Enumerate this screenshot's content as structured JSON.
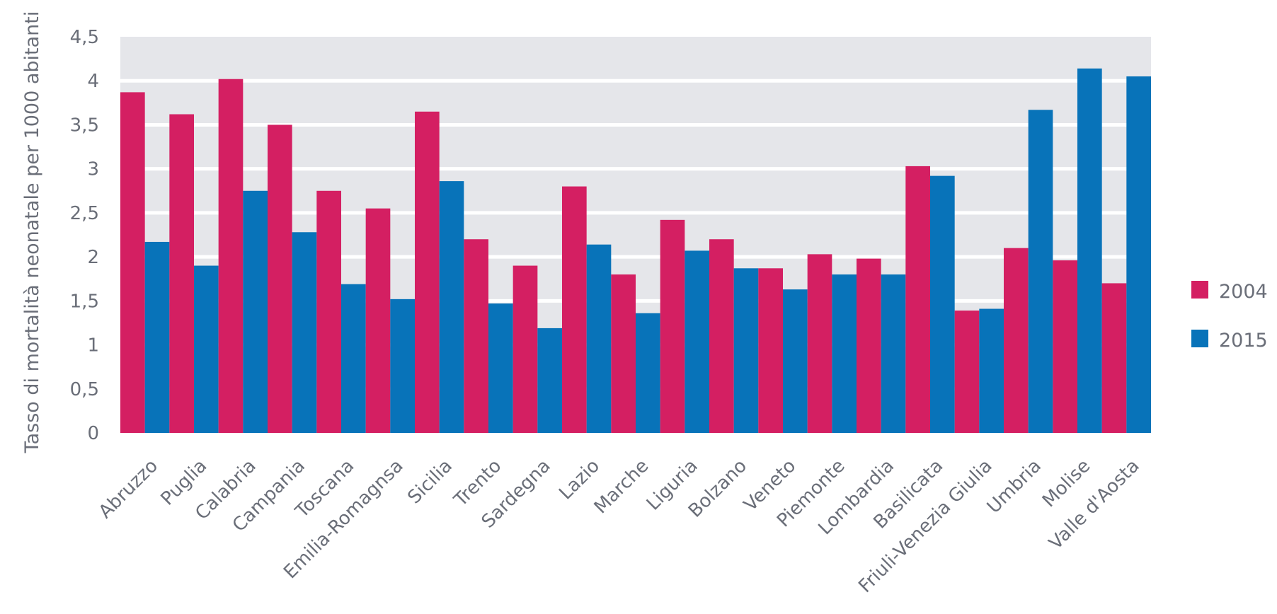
{
  "chart_data": {
    "type": "bar",
    "title": "",
    "xlabel": "",
    "ylabel": "Tasso di mortalità neonatale per 1000 abitanti",
    "ylim": [
      0,
      4.5
    ],
    "yticks": [
      "0",
      "0,5",
      "1",
      "1,5",
      "2",
      "2,5",
      "3",
      "3,5",
      "4",
      "4,5"
    ],
    "legend_position": "right",
    "categories": [
      "Abruzzo",
      "Puglia",
      "Calabria",
      "Campania",
      "Toscana",
      "Emilia-Romagnsa",
      "Sicilia",
      "Trento",
      "Sardegna",
      "Lazio",
      "Marche",
      "Liguria",
      "Bolzano",
      "Veneto",
      "Piemonte",
      "Lombardia",
      "Basilicata",
      "Friuli-Venezia Giulia",
      "Umbria",
      "Molise",
      "Valle d'Aosta"
    ],
    "series": [
      {
        "name": "2004",
        "color": "#d41f62",
        "values": [
          3.87,
          3.62,
          4.02,
          3.5,
          2.75,
          2.55,
          3.65,
          2.2,
          1.9,
          2.8,
          1.8,
          2.42,
          2.2,
          1.87,
          2.03,
          1.98,
          3.03,
          1.39,
          2.1,
          1.96,
          1.7
        ]
      },
      {
        "name": "2015",
        "color": "#0873b9",
        "values": [
          2.17,
          1.9,
          2.75,
          2.28,
          1.69,
          1.52,
          2.86,
          1.47,
          1.19,
          2.14,
          1.36,
          2.07,
          1.87,
          1.63,
          1.8,
          1.8,
          2.92,
          1.41,
          3.67,
          4.14,
          4.05
        ]
      }
    ],
    "colors": {
      "plot_background": "#e5e6ea",
      "gridline": "#ffffff",
      "text": "#6a6e78"
    }
  }
}
